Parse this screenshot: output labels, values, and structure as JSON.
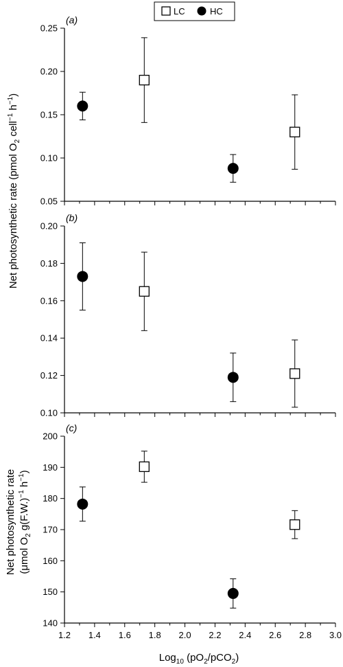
{
  "legend": {
    "items": [
      {
        "label": "LC",
        "marker": "open-square"
      },
      {
        "label": "HC",
        "marker": "filled-circle"
      }
    ]
  },
  "chart_data": [
    {
      "type": "scatter",
      "panel_label": "(a)",
      "xlim": [
        1.2,
        3.0
      ],
      "ylim": [
        0.05,
        0.25
      ],
      "yticks": [
        "0.05",
        "0.10",
        "0.15",
        "0.20",
        "0.25"
      ],
      "ylabel": "Net photosynthetic rate (pmol O2 cell−1 h−1)",
      "series": [
        {
          "name": "LC",
          "points": [
            {
              "x": 1.73,
              "y": 0.19,
              "err": 0.049
            },
            {
              "x": 2.73,
              "y": 0.13,
              "err": 0.043
            }
          ]
        },
        {
          "name": "HC",
          "points": [
            {
              "x": 1.32,
              "y": 0.16,
              "err": 0.016
            },
            {
              "x": 2.32,
              "y": 0.088,
              "err": 0.016
            }
          ]
        }
      ]
    },
    {
      "type": "scatter",
      "panel_label": "(b)",
      "xlim": [
        1.2,
        3.0
      ],
      "ylim": [
        0.1,
        0.2
      ],
      "yticks": [
        "0.10",
        "0.12",
        "0.14",
        "0.16",
        "0.18",
        "0.20"
      ],
      "series": [
        {
          "name": "LC",
          "points": [
            {
              "x": 1.73,
              "y": 0.165,
              "err": 0.021
            },
            {
              "x": 2.73,
              "y": 0.121,
              "err": 0.018
            }
          ]
        },
        {
          "name": "HC",
          "points": [
            {
              "x": 1.32,
              "y": 0.173,
              "err": 0.018
            },
            {
              "x": 2.32,
              "y": 0.119,
              "err": 0.013
            }
          ]
        }
      ]
    },
    {
      "type": "scatter",
      "panel_label": "(c)",
      "xlim": [
        1.2,
        3.0
      ],
      "ylim": [
        140,
        200
      ],
      "yticks": [
        "140",
        "150",
        "160",
        "170",
        "180",
        "190",
        "200"
      ],
      "xticks": [
        "1.2",
        "1.4",
        "1.6",
        "1.8",
        "2.0",
        "2.2",
        "2.4",
        "2.6",
        "2.8",
        "3.0"
      ],
      "xlabel": "Log10 (pO2/pCO2)",
      "ylabel": "Net photosynthetic rate (μmol O2 g(F.W.)−1 h−1)",
      "series": [
        {
          "name": "LC",
          "points": [
            {
              "x": 1.73,
              "y": 190.2,
              "err": 5.0
            },
            {
              "x": 2.73,
              "y": 171.6,
              "err": 4.5
            }
          ]
        },
        {
          "name": "HC",
          "points": [
            {
              "x": 1.32,
              "y": 178.2,
              "err": 5.5
            },
            {
              "x": 2.32,
              "y": 149.5,
              "err": 4.7
            }
          ]
        }
      ]
    }
  ]
}
